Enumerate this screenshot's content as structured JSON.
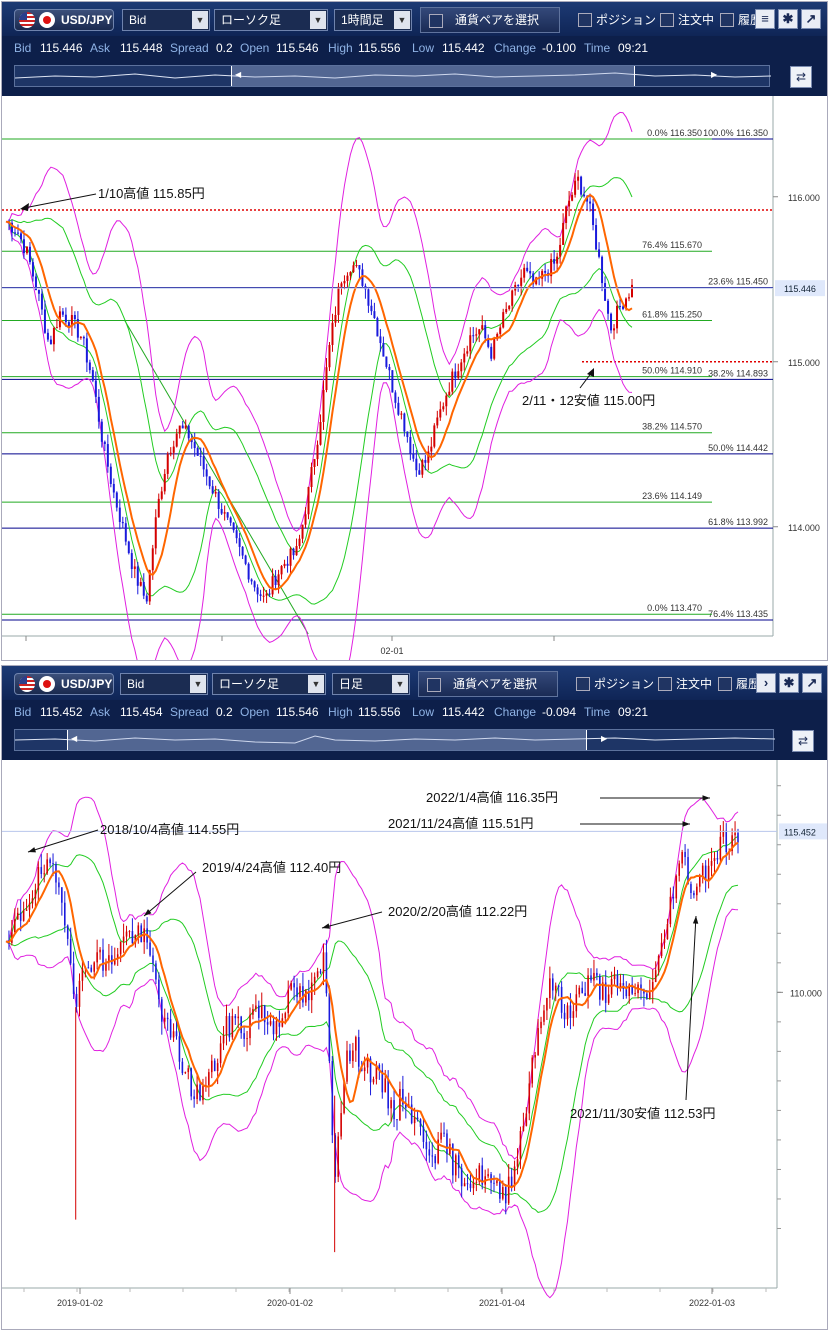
{
  "top": {
    "pair": "USD/JPY",
    "price_type": "Bid",
    "chart_type": "ローソク足",
    "timeframe": "1時間足",
    "choose_pair_label": "通貨ペアを選択",
    "position_label": "ポジション",
    "order_label": "注文中",
    "history_label": "履歴",
    "quotes": [
      {
        "label": "Bid",
        "value": "115.446"
      },
      {
        "label": "Ask",
        "value": "115.448"
      },
      {
        "label": "Spread",
        "value": "0.2"
      },
      {
        "label": "Open",
        "value": "115.546"
      },
      {
        "label": "High",
        "value": "115.556"
      },
      {
        "label": "Low",
        "value": "115.442"
      },
      {
        "label": "Change",
        "value": "-0.100"
      },
      {
        "label": "Time",
        "value": "09:21"
      }
    ]
  },
  "bottom": {
    "pair": "USD/JPY",
    "price_type": "Bid",
    "chart_type": "ローソク足",
    "timeframe": "日足",
    "choose_pair_label": "通貨ペアを選択",
    "position_label": "ポジション",
    "order_label": "注文中",
    "history_label": "履歴",
    "quotes": [
      {
        "label": "Bid",
        "value": "115.452"
      },
      {
        "label": "Ask",
        "value": "115.454"
      },
      {
        "label": "Spread",
        "value": "0.2"
      },
      {
        "label": "Open",
        "value": "115.546"
      },
      {
        "label": "High",
        "value": "115.556"
      },
      {
        "label": "Low",
        "value": "115.442"
      },
      {
        "label": "Change",
        "value": "-0.094"
      },
      {
        "label": "Time",
        "value": "09:21"
      }
    ]
  },
  "colors": {
    "toolbar": "#14306a",
    "candle_up": "#d40000",
    "candle_down": "#1a1adc",
    "ma_orange": "#ff6600",
    "band_green": "#22cc22",
    "band_magenta": "#e020e0",
    "fib_blue": "#00008b",
    "fib_green": "#22aa22",
    "dotted_red": "#e00000",
    "price_tag_bg": "#dfe8fb"
  },
  "chart_data": [
    {
      "type": "candlestick",
      "timeframe": "1時間足",
      "x_ticks": [
        "02-01"
      ],
      "y_ticks": [
        "116.000",
        "115.000",
        "114.000"
      ],
      "ylim": [
        113.35,
        116.55
      ],
      "current_price_label": "115.446",
      "current_price": 115.446,
      "path": [
        [
          0,
          115.85
        ],
        [
          6,
          115.8
        ],
        [
          12,
          115.65
        ],
        [
          18,
          115.4
        ],
        [
          24,
          115.1
        ],
        [
          30,
          115.3
        ],
        [
          36,
          115.25
        ],
        [
          42,
          115.15
        ],
        [
          48,
          114.9
        ],
        [
          54,
          114.5
        ],
        [
          60,
          114.2
        ],
        [
          66,
          113.95
        ],
        [
          72,
          113.7
        ],
        [
          78,
          113.55
        ],
        [
          84,
          114.1
        ],
        [
          90,
          114.45
        ],
        [
          96,
          114.6
        ],
        [
          102,
          114.55
        ],
        [
          108,
          114.4
        ],
        [
          114,
          114.25
        ],
        [
          120,
          114.1
        ],
        [
          126,
          113.95
        ],
        [
          132,
          113.8
        ],
        [
          138,
          113.65
        ],
        [
          144,
          113.55
        ],
        [
          150,
          113.7
        ],
        [
          156,
          113.8
        ],
        [
          162,
          113.85
        ],
        [
          168,
          114.2
        ],
        [
          174,
          114.6
        ],
        [
          180,
          115.1
        ],
        [
          186,
          115.5
        ],
        [
          192,
          115.6
        ],
        [
          198,
          115.5
        ],
        [
          204,
          115.3
        ],
        [
          210,
          115.05
        ],
        [
          216,
          114.8
        ],
        [
          222,
          114.6
        ],
        [
          228,
          114.35
        ],
        [
          234,
          114.4
        ],
        [
          240,
          114.65
        ],
        [
          246,
          114.85
        ],
        [
          252,
          115.0
        ],
        [
          258,
          115.15
        ],
        [
          264,
          115.2
        ],
        [
          270,
          115.05
        ],
        [
          276,
          115.25
        ],
        [
          282,
          115.4
        ],
        [
          288,
          115.55
        ],
        [
          294,
          115.45
        ],
        [
          300,
          115.55
        ],
        [
          306,
          115.6
        ],
        [
          312,
          115.95
        ],
        [
          318,
          116.1
        ],
        [
          324,
          115.95
        ],
        [
          330,
          115.6
        ],
        [
          336,
          115.2
        ],
        [
          342,
          115.35
        ],
        [
          348,
          115.45
        ]
      ],
      "annotations": [
        {
          "text": "1/10高値 115.85円",
          "x": 0,
          "y": 115.85
        },
        {
          "text": "2/11・12安値 115.00円",
          "x": 334,
          "y": 115.0
        }
      ],
      "reference_lines": [
        {
          "kind": "dotted_red",
          "value": 115.92
        },
        {
          "kind": "dotted_red",
          "value": 115.0
        }
      ],
      "fib_a": [
        {
          "label": "100.0%  116.350",
          "value": 116.35
        },
        {
          "label": "23.6%  115.450",
          "value": 115.45
        },
        {
          "label": "38.2%  114.893",
          "value": 114.893
        },
        {
          "label": "50.0%  114.442",
          "value": 114.442
        },
        {
          "label": "61.8%  113.992",
          "value": 113.992
        },
        {
          "label": "76.4%  113.435",
          "value": 113.435
        }
      ],
      "fib_b": [
        {
          "label": "0.0%  116.350",
          "value": 116.35
        },
        {
          "label": "76.4%  115.670",
          "value": 115.67
        },
        {
          "label": "61.8%  115.250",
          "value": 115.25
        },
        {
          "label": "50.0%  114.910",
          "value": 114.91
        },
        {
          "label": "38.2%  114.570",
          "value": 114.57
        },
        {
          "label": "23.6%  114.149",
          "value": 114.149
        },
        {
          "label": "0.0%  113.470",
          "value": 113.47
        }
      ]
    },
    {
      "type": "candlestick",
      "timeframe": "日足",
      "x_ticks": [
        "2019-01-02",
        "2020-01-02",
        "2021-01-04",
        "2022-01-03"
      ],
      "y_ticks": [
        "110.000"
      ],
      "ylim": [
        101.0,
        117.6
      ],
      "current_price_label": "115.452",
      "current_price": 115.452,
      "path": [
        [
          0,
          111.3
        ],
        [
          10,
          112.3
        ],
        [
          20,
          113.0
        ],
        [
          30,
          113.7
        ],
        [
          40,
          114.2
        ],
        [
          50,
          113.8
        ],
        [
          60,
          112.6
        ],
        [
          70,
          109.8
        ],
        [
          80,
          110.8
        ],
        [
          90,
          111.4
        ],
        [
          100,
          110.8
        ],
        [
          110,
          111.4
        ],
        [
          120,
          111.9
        ],
        [
          130,
          112.0
        ],
        [
          140,
          111.7
        ],
        [
          150,
          110.5
        ],
        [
          160,
          108.8
        ],
        [
          170,
          108.3
        ],
        [
          180,
          107.3
        ],
        [
          190,
          106.5
        ],
        [
          200,
          106.8
        ],
        [
          210,
          107.6
        ],
        [
          220,
          108.7
        ],
        [
          230,
          109.1
        ],
        [
          240,
          108.6
        ],
        [
          250,
          109.6
        ],
        [
          260,
          109.1
        ],
        [
          270,
          108.9
        ],
        [
          280,
          109.6
        ],
        [
          290,
          110.1
        ],
        [
          300,
          109.7
        ],
        [
          310,
          110.2
        ],
        [
          320,
          111.2
        ],
        [
          330,
          103.8
        ],
        [
          340,
          107.6
        ],
        [
          350,
          108.1
        ],
        [
          360,
          107.6
        ],
        [
          370,
          107.2
        ],
        [
          380,
          106.7
        ],
        [
          390,
          105.9
        ],
        [
          400,
          106.6
        ],
        [
          410,
          105.6
        ],
        [
          420,
          105.1
        ],
        [
          430,
          104.6
        ],
        [
          440,
          104.9
        ],
        [
          450,
          104.1
        ],
        [
          460,
          103.8
        ],
        [
          470,
          103.6
        ],
        [
          480,
          103.9
        ],
        [
          490,
          103.3
        ],
        [
          500,
          103.1
        ],
        [
          510,
          104.1
        ],
        [
          520,
          105.6
        ],
        [
          530,
          108.1
        ],
        [
          540,
          109.6
        ],
        [
          550,
          110.4
        ],
        [
          560,
          109.2
        ],
        [
          570,
          109.7
        ],
        [
          580,
          110.1
        ],
        [
          590,
          110.4
        ],
        [
          600,
          110.0
        ],
        [
          610,
          110.3
        ],
        [
          620,
          109.8
        ],
        [
          630,
          110.2
        ],
        [
          640,
          109.9
        ],
        [
          650,
          110.3
        ],
        [
          660,
          111.6
        ],
        [
          670,
          113.6
        ],
        [
          680,
          114.6
        ],
        [
          690,
          113.4
        ],
        [
          700,
          114.1
        ],
        [
          710,
          114.6
        ],
        [
          720,
          115.2
        ],
        [
          730,
          115.0
        ],
        [
          735,
          115.45
        ]
      ],
      "annotations": [
        {
          "text": "2018/10/4高値 114.55円",
          "x": 30,
          "y": 114.55
        },
        {
          "text": "2019/4/24高値 112.40円",
          "x": 145,
          "y": 112.4
        },
        {
          "text": "2020/2/20高値 112.22円",
          "x": 320,
          "y": 112.22
        },
        {
          "text": "2022/1/4高値 116.35円",
          "x": 712,
          "y": 116.35
        },
        {
          "text": "2021/11/24高値 115.51円",
          "x": 690,
          "y": 115.51
        },
        {
          "text": "2021/11/30安値 112.53円",
          "x": 693,
          "y": 112.53
        }
      ]
    }
  ]
}
